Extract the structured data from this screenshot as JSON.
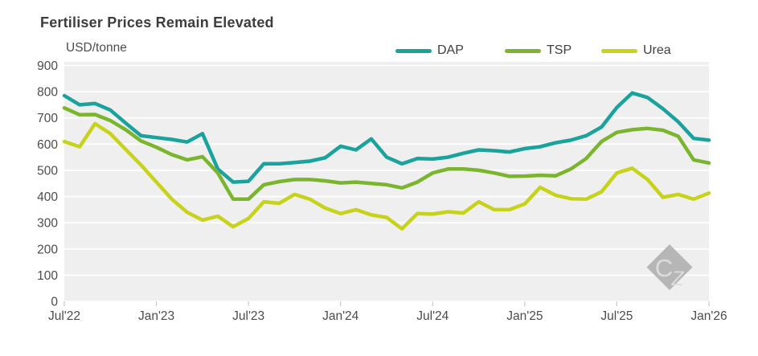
{
  "header": {
    "title": "Fertiliser Prices Remain Elevated",
    "units_label": "USD/tonne"
  },
  "legend": [
    {
      "label": "DAP",
      "color": "#1aa29c"
    },
    {
      "label": "TSP",
      "color": "#7ab52d"
    },
    {
      "label": "Urea",
      "color": "#c7d21b"
    }
  ],
  "watermark": {
    "text": "CZ",
    "diamond_color": "#b6b6b6",
    "letter_color": "#dcdcdc"
  },
  "colors": {
    "plot_background": "#efefef",
    "gridline": "#ffffff",
    "axis_text": "#4c4c4c",
    "tick_mark": "#c9c9c9",
    "title_text": "#3d3d3d"
  },
  "chart_data": {
    "type": "line",
    "title": "Fertiliser Prices Remain Elevated",
    "ylabel": "USD/tonne",
    "ylim": [
      0,
      900
    ],
    "ytick_step": 100,
    "y_tick_labels": [
      "0",
      "100",
      "200",
      "300",
      "400",
      "500",
      "600",
      "700",
      "800",
      "900"
    ],
    "grid": "horizontal-white-on-gray",
    "legend_position": "top-right",
    "x": [
      "Jul'22",
      "Aug'22",
      "Sep'22",
      "Oct'22",
      "Nov'22",
      "Dec'22",
      "Jan'23",
      "Feb'23",
      "Mar'23",
      "Apr'23",
      "May'23",
      "Jun'23",
      "Jul'23",
      "Aug'23",
      "Sep'23",
      "Oct'23",
      "Nov'23",
      "Dec'23",
      "Jan'24",
      "Feb'24",
      "Mar'24",
      "Apr'24",
      "May'24",
      "Jun'24",
      "Jul'24",
      "Aug'24",
      "Sep'24",
      "Oct'24",
      "Nov'24",
      "Dec'24",
      "Jan'25",
      "Feb'25",
      "Mar'25",
      "Apr'25",
      "May'25",
      "Jun'25",
      "Jul'25",
      "Aug'25",
      "Sep'25",
      "Oct'25",
      "Nov'25",
      "Dec'25",
      "Jan'26"
    ],
    "x_tick_indices": [
      0,
      6,
      12,
      18,
      24,
      30,
      36,
      42
    ],
    "x_tick_labels": [
      "Jul'22",
      "Jan'23",
      "Jul'23",
      "Jan'24",
      "Jul'24",
      "Jan'25",
      "Jul'25",
      "Jan'26"
    ],
    "series": [
      {
        "name": "DAP",
        "color": "#1aa29c",
        "values": [
          785,
          750,
          755,
          730,
          680,
          632,
          625,
          618,
          608,
          640,
          505,
          455,
          458,
          525,
          525,
          530,
          535,
          548,
          592,
          578,
          620,
          550,
          525,
          545,
          543,
          550,
          565,
          578,
          575,
          570,
          583,
          590,
          605,
          615,
          632,
          665,
          740,
          795,
          778,
          735,
          685,
          622,
          615
        ]
      },
      {
        "name": "TSP",
        "color": "#7ab52d",
        "values": [
          738,
          712,
          713,
          690,
          655,
          612,
          588,
          560,
          540,
          552,
          490,
          390,
          390,
          445,
          457,
          465,
          465,
          460,
          452,
          455,
          450,
          445,
          433,
          455,
          490,
          505,
          505,
          500,
          490,
          477,
          478,
          481,
          479,
          505,
          545,
          610,
          645,
          655,
          660,
          653,
          630,
          540,
          528
        ]
      },
      {
        "name": "Urea",
        "color": "#c7d21b",
        "values": [
          610,
          590,
          678,
          640,
          580,
          520,
          455,
          390,
          340,
          310,
          325,
          285,
          316,
          380,
          374,
          408,
          390,
          356,
          335,
          350,
          330,
          320,
          277,
          335,
          333,
          342,
          337,
          380,
          350,
          350,
          372,
          435,
          405,
          392,
          390,
          418,
          490,
          508,
          465,
          397,
          408,
          390,
          413
        ]
      }
    ]
  }
}
